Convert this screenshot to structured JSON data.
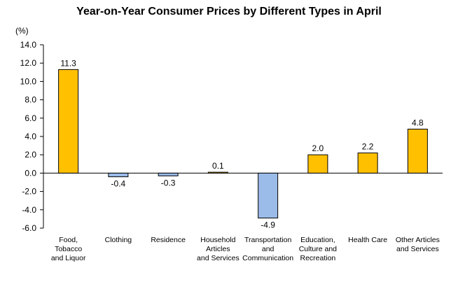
{
  "chart_data": {
    "type": "bar",
    "title": "Year-on-Year Consumer Prices by Different  Types in April",
    "ylabel": "(%)",
    "xlabel": "",
    "ylim": [
      -6.0,
      14.0
    ],
    "yticks": [
      "14.0",
      "12.0",
      "10.0",
      "8.0",
      "6.0",
      "4.0",
      "2.0",
      "0.0",
      "-2.0",
      "-4.0",
      "-6.0"
    ],
    "categories": [
      [
        "Food,",
        "Tobacco",
        "and Liquor"
      ],
      [
        "Clothing"
      ],
      [
        "Residence"
      ],
      [
        "Household",
        "Articles",
        "and Services"
      ],
      [
        "Transportation",
        "and",
        "Communication"
      ],
      [
        "Education,",
        "Culture and",
        "Recreation"
      ],
      [
        "Health Care"
      ],
      [
        "Other Articles",
        "and Services"
      ]
    ],
    "values": [
      11.3,
      -0.4,
      -0.3,
      0.1,
      -4.9,
      2.0,
      2.2,
      4.8
    ],
    "value_labels": [
      "11.3",
      "-0.4",
      "-0.3",
      "0.1",
      "-4.9",
      "2.0",
      "2.2",
      "4.8"
    ],
    "grid": false,
    "legend": "none",
    "colors": {
      "positive": "#FFC000",
      "negative": "#9BBBE8",
      "stroke": "#000000"
    }
  }
}
